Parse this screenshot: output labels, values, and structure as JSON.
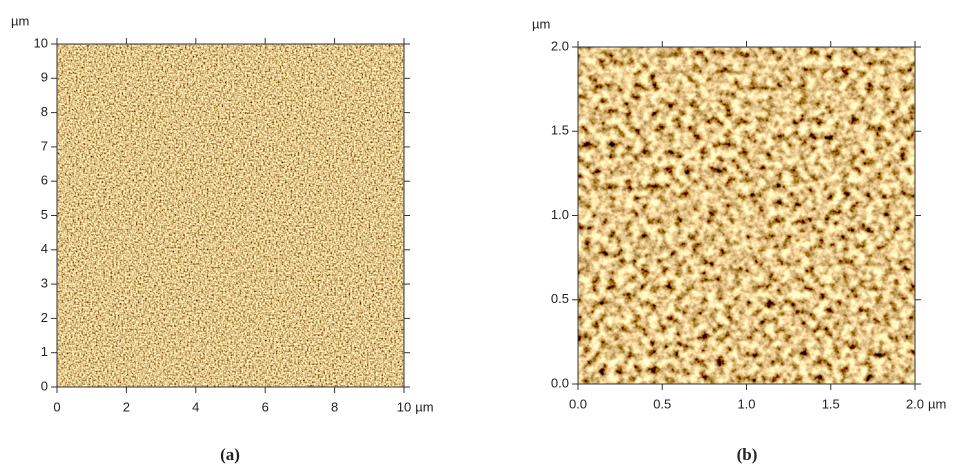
{
  "panels": [
    {
      "unit": "µm",
      "caption": "(a)",
      "xlim": [
        0,
        10
      ],
      "ylim": [
        0,
        10
      ],
      "xticks": [
        0,
        2,
        4,
        6,
        8,
        10
      ],
      "yticks": [
        0,
        1,
        2,
        3,
        4,
        5,
        6,
        7,
        8,
        9,
        10
      ]
    },
    {
      "unit": "µm",
      "caption": "(b)",
      "xlim": [
        0,
        2
      ],
      "ylim": [
        0,
        2
      ],
      "xticks": [
        {
          "value": 0,
          "label": "0.0"
        },
        {
          "value": 0.5,
          "label": "0.5"
        },
        {
          "value": 1,
          "label": "1.0"
        },
        {
          "value": 1.5,
          "label": "1.5"
        },
        {
          "value": 2,
          "label": "2.0"
        }
      ],
      "yticks": [
        {
          "value": 0,
          "label": "0.0"
        },
        {
          "value": 0.5,
          "label": "0.5"
        },
        {
          "value": 1,
          "label": "1.0"
        },
        {
          "value": 1.5,
          "label": "1.5"
        },
        {
          "value": 2,
          "label": "2.0"
        }
      ]
    }
  ]
}
